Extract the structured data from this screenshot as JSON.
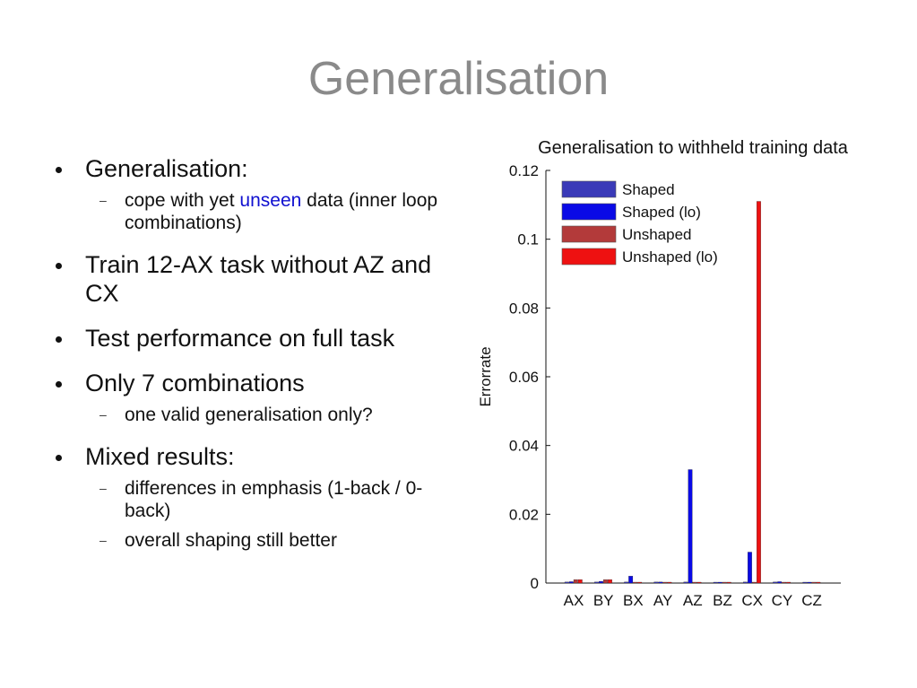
{
  "slide": {
    "title": "Generalisation",
    "bullets": [
      {
        "text": "Generalisation:",
        "sub": [
          {
            "pre": "cope with yet ",
            "highlight": "unseen",
            "post": " data (inner loop combinations)"
          }
        ]
      },
      {
        "text": "Train 12-AX task without AZ and  CX",
        "sub": []
      },
      {
        "text": "Test performance on full task",
        "sub": []
      },
      {
        "text": "Only 7 combinations",
        "sub": [
          {
            "pre": "one valid generalisation only?",
            "highlight": "",
            "post": ""
          }
        ]
      },
      {
        "text": "Mixed results:",
        "sub": [
          {
            "pre": "differences in emphasis (1-back / 0-back)",
            "highlight": "",
            "post": ""
          },
          {
            "pre": "overall shaping still better",
            "highlight": "",
            "post": ""
          }
        ]
      }
    ],
    "highlight_color": "#1010d0"
  },
  "chart_data": {
    "type": "bar",
    "title": "Generalisation to withheld training data",
    "xlabel": "",
    "ylabel": "Errorrate",
    "categories": [
      "AX",
      "BY",
      "BX",
      "AY",
      "AZ",
      "BZ",
      "CX",
      "CY",
      "CZ"
    ],
    "ylim": [
      0,
      0.12
    ],
    "yticks": [
      0,
      0.02,
      0.04,
      0.06,
      0.08,
      0.1,
      0.12
    ],
    "ytick_labels": [
      "0",
      "0.02",
      "0.04",
      "0.06",
      "0.08",
      "0.1",
      "0.12"
    ],
    "legend_position": "top-left",
    "series": [
      {
        "name": "Shaped",
        "color": "#3a3ab8",
        "values": [
          0.0003,
          0.0003,
          0.0003,
          0.0003,
          0.0003,
          0.0002,
          0.0003,
          0.0003,
          0.0002
        ]
      },
      {
        "name": "Shaped (lo)",
        "color": "#0a0ae6",
        "values": [
          0.0004,
          0.0005,
          0.002,
          0.0003,
          0.033,
          0.0002,
          0.009,
          0.0004,
          0.0002
        ]
      },
      {
        "name": "Unshaped",
        "color": "#b33a3a",
        "values": [
          0.001,
          0.001,
          0.0002,
          0.0002,
          0.0002,
          0.0002,
          0.0002,
          0.0002,
          0.0002
        ]
      },
      {
        "name": "Unshaped (lo)",
        "color": "#ee1111",
        "values": [
          0.001,
          0.001,
          0.0002,
          0.0002,
          0.0002,
          0.0002,
          0.111,
          0.0002,
          0.0002
        ]
      }
    ]
  }
}
